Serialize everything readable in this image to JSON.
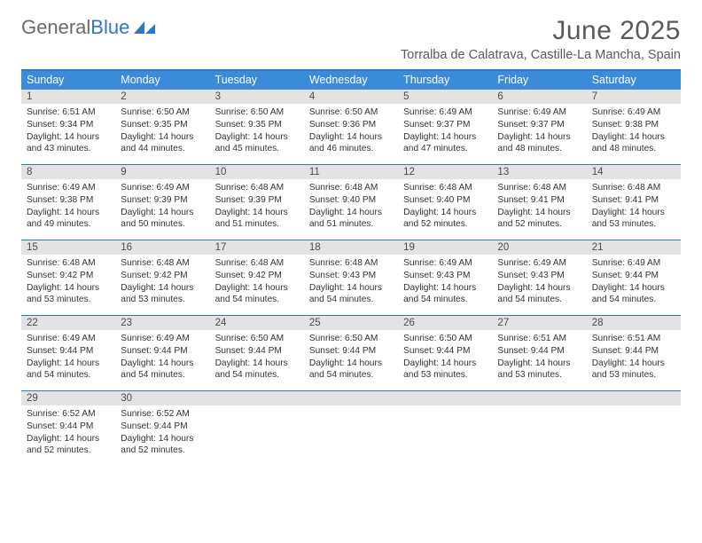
{
  "logo": {
    "word1": "General",
    "word2": "Blue"
  },
  "header": {
    "title": "June 2025",
    "subtitle": "Torralba de Calatrava, Castille-La Mancha, Spain"
  },
  "colors": {
    "header_bar": "#3a8bd8",
    "divider": "#2f78c4",
    "daynum_bg": "#e3e3e3",
    "title_text": "#5a5a5a",
    "cell_text": "#333333"
  },
  "typography": {
    "title_fontsize": 30,
    "subtitle_fontsize": 14.5,
    "weekday_fontsize": 12.5,
    "daynum_fontsize": 11.5,
    "body_fontsize": 10.2
  },
  "calendar": {
    "columns": 7,
    "weekdays": [
      "Sunday",
      "Monday",
      "Tuesday",
      "Wednesday",
      "Thursday",
      "Friday",
      "Saturday"
    ],
    "weeks": [
      [
        {
          "n": "1",
          "sunrise": "Sunrise: 6:51 AM",
          "sunset": "Sunset: 9:34 PM",
          "d1": "Daylight: 14 hours",
          "d2": "and 43 minutes."
        },
        {
          "n": "2",
          "sunrise": "Sunrise: 6:50 AM",
          "sunset": "Sunset: 9:35 PM",
          "d1": "Daylight: 14 hours",
          "d2": "and 44 minutes."
        },
        {
          "n": "3",
          "sunrise": "Sunrise: 6:50 AM",
          "sunset": "Sunset: 9:35 PM",
          "d1": "Daylight: 14 hours",
          "d2": "and 45 minutes."
        },
        {
          "n": "4",
          "sunrise": "Sunrise: 6:50 AM",
          "sunset": "Sunset: 9:36 PM",
          "d1": "Daylight: 14 hours",
          "d2": "and 46 minutes."
        },
        {
          "n": "5",
          "sunrise": "Sunrise: 6:49 AM",
          "sunset": "Sunset: 9:37 PM",
          "d1": "Daylight: 14 hours",
          "d2": "and 47 minutes."
        },
        {
          "n": "6",
          "sunrise": "Sunrise: 6:49 AM",
          "sunset": "Sunset: 9:37 PM",
          "d1": "Daylight: 14 hours",
          "d2": "and 48 minutes."
        },
        {
          "n": "7",
          "sunrise": "Sunrise: 6:49 AM",
          "sunset": "Sunset: 9:38 PM",
          "d1": "Daylight: 14 hours",
          "d2": "and 48 minutes."
        }
      ],
      [
        {
          "n": "8",
          "sunrise": "Sunrise: 6:49 AM",
          "sunset": "Sunset: 9:38 PM",
          "d1": "Daylight: 14 hours",
          "d2": "and 49 minutes."
        },
        {
          "n": "9",
          "sunrise": "Sunrise: 6:49 AM",
          "sunset": "Sunset: 9:39 PM",
          "d1": "Daylight: 14 hours",
          "d2": "and 50 minutes."
        },
        {
          "n": "10",
          "sunrise": "Sunrise: 6:48 AM",
          "sunset": "Sunset: 9:39 PM",
          "d1": "Daylight: 14 hours",
          "d2": "and 51 minutes."
        },
        {
          "n": "11",
          "sunrise": "Sunrise: 6:48 AM",
          "sunset": "Sunset: 9:40 PM",
          "d1": "Daylight: 14 hours",
          "d2": "and 51 minutes."
        },
        {
          "n": "12",
          "sunrise": "Sunrise: 6:48 AM",
          "sunset": "Sunset: 9:40 PM",
          "d1": "Daylight: 14 hours",
          "d2": "and 52 minutes."
        },
        {
          "n": "13",
          "sunrise": "Sunrise: 6:48 AM",
          "sunset": "Sunset: 9:41 PM",
          "d1": "Daylight: 14 hours",
          "d2": "and 52 minutes."
        },
        {
          "n": "14",
          "sunrise": "Sunrise: 6:48 AM",
          "sunset": "Sunset: 9:41 PM",
          "d1": "Daylight: 14 hours",
          "d2": "and 53 minutes."
        }
      ],
      [
        {
          "n": "15",
          "sunrise": "Sunrise: 6:48 AM",
          "sunset": "Sunset: 9:42 PM",
          "d1": "Daylight: 14 hours",
          "d2": "and 53 minutes."
        },
        {
          "n": "16",
          "sunrise": "Sunrise: 6:48 AM",
          "sunset": "Sunset: 9:42 PM",
          "d1": "Daylight: 14 hours",
          "d2": "and 53 minutes."
        },
        {
          "n": "17",
          "sunrise": "Sunrise: 6:48 AM",
          "sunset": "Sunset: 9:42 PM",
          "d1": "Daylight: 14 hours",
          "d2": "and 54 minutes."
        },
        {
          "n": "18",
          "sunrise": "Sunrise: 6:48 AM",
          "sunset": "Sunset: 9:43 PM",
          "d1": "Daylight: 14 hours",
          "d2": "and 54 minutes."
        },
        {
          "n": "19",
          "sunrise": "Sunrise: 6:49 AM",
          "sunset": "Sunset: 9:43 PM",
          "d1": "Daylight: 14 hours",
          "d2": "and 54 minutes."
        },
        {
          "n": "20",
          "sunrise": "Sunrise: 6:49 AM",
          "sunset": "Sunset: 9:43 PM",
          "d1": "Daylight: 14 hours",
          "d2": "and 54 minutes."
        },
        {
          "n": "21",
          "sunrise": "Sunrise: 6:49 AM",
          "sunset": "Sunset: 9:44 PM",
          "d1": "Daylight: 14 hours",
          "d2": "and 54 minutes."
        }
      ],
      [
        {
          "n": "22",
          "sunrise": "Sunrise: 6:49 AM",
          "sunset": "Sunset: 9:44 PM",
          "d1": "Daylight: 14 hours",
          "d2": "and 54 minutes."
        },
        {
          "n": "23",
          "sunrise": "Sunrise: 6:49 AM",
          "sunset": "Sunset: 9:44 PM",
          "d1": "Daylight: 14 hours",
          "d2": "and 54 minutes."
        },
        {
          "n": "24",
          "sunrise": "Sunrise: 6:50 AM",
          "sunset": "Sunset: 9:44 PM",
          "d1": "Daylight: 14 hours",
          "d2": "and 54 minutes."
        },
        {
          "n": "25",
          "sunrise": "Sunrise: 6:50 AM",
          "sunset": "Sunset: 9:44 PM",
          "d1": "Daylight: 14 hours",
          "d2": "and 54 minutes."
        },
        {
          "n": "26",
          "sunrise": "Sunrise: 6:50 AM",
          "sunset": "Sunset: 9:44 PM",
          "d1": "Daylight: 14 hours",
          "d2": "and 53 minutes."
        },
        {
          "n": "27",
          "sunrise": "Sunrise: 6:51 AM",
          "sunset": "Sunset: 9:44 PM",
          "d1": "Daylight: 14 hours",
          "d2": "and 53 minutes."
        },
        {
          "n": "28",
          "sunrise": "Sunrise: 6:51 AM",
          "sunset": "Sunset: 9:44 PM",
          "d1": "Daylight: 14 hours",
          "d2": "and 53 minutes."
        }
      ],
      [
        {
          "n": "29",
          "sunrise": "Sunrise: 6:52 AM",
          "sunset": "Sunset: 9:44 PM",
          "d1": "Daylight: 14 hours",
          "d2": "and 52 minutes."
        },
        {
          "n": "30",
          "sunrise": "Sunrise: 6:52 AM",
          "sunset": "Sunset: 9:44 PM",
          "d1": "Daylight: 14 hours",
          "d2": "and 52 minutes."
        },
        {
          "empty": true
        },
        {
          "empty": true
        },
        {
          "empty": true
        },
        {
          "empty": true
        },
        {
          "empty": true
        }
      ]
    ]
  }
}
